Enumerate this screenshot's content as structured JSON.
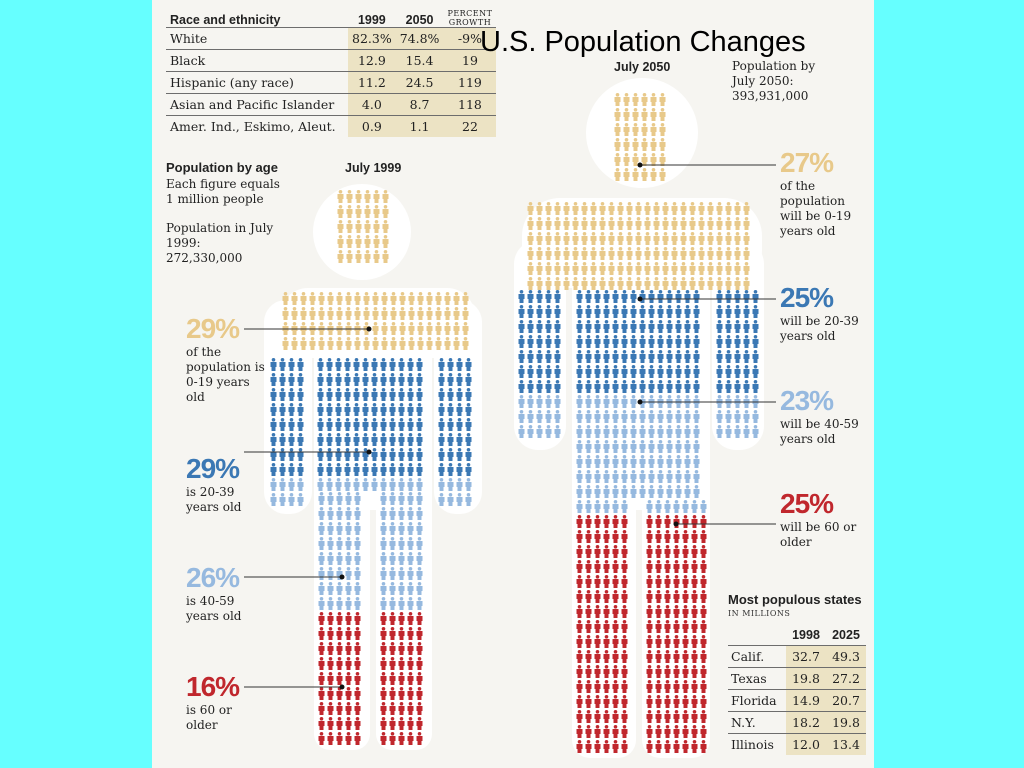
{
  "slide_title": "U.S. Population Changes",
  "race_table": {
    "headers": {
      "label": "Race and ethnicity",
      "y1": "1999",
      "y2": "2050",
      "growth": "PERCENT GROWTH"
    },
    "rows": [
      {
        "label": "White",
        "y1": "82.3%",
        "y2": "74.8%",
        "growth": "-9%"
      },
      {
        "label": "Black",
        "y1": "12.9",
        "y2": "15.4",
        "growth": "19"
      },
      {
        "label": "Hispanic (any race)",
        "y1": "11.2",
        "y2": "24.5",
        "growth": "119"
      },
      {
        "label": "Asian and Pacific Islander",
        "y1": "4.0",
        "y2": "8.7",
        "growth": "118"
      },
      {
        "label": "Amer. Ind., Eskimo, Aleut.",
        "y1": "0.9",
        "y2": "1.1",
        "growth": "22"
      }
    ]
  },
  "age_section": {
    "title": "Population by age",
    "note": "Each figure equals 1 million people",
    "pop_1999_label": "Population in July 1999:",
    "pop_1999_value": "272,330,000",
    "label_1999": "July 1999",
    "label_2050": "July 2050",
    "pop_2050_label": "Population by July 2050:",
    "pop_2050_value": "393,931,000"
  },
  "annotations_1999": [
    {
      "pct": "29%",
      "text": "of the population is 0-19 years old",
      "color": "#e8c98a"
    },
    {
      "pct": "29%",
      "text": "is 20-39 years old",
      "color": "#3b78b4"
    },
    {
      "pct": "26%",
      "text": "is 40-59 years old",
      "color": "#96b9df"
    },
    {
      "pct": "16%",
      "text": "is 60 or older",
      "color": "#c0272d"
    }
  ],
  "annotations_2050": [
    {
      "pct": "27%",
      "text": "of the population will be 0-19 years old",
      "color": "#e8c98a"
    },
    {
      "pct": "25%",
      "text": "will be 20-39 years old",
      "color": "#3b78b4"
    },
    {
      "pct": "23%",
      "text": "will be 40-59 years old",
      "color": "#96b9df"
    },
    {
      "pct": "25%",
      "text": "will be 60 or older",
      "color": "#c0272d"
    }
  ],
  "states_table": {
    "title": "Most populous states",
    "subtitle": "IN MILLIONS",
    "headers": [
      "1998",
      "2025"
    ],
    "rows": [
      {
        "state": "Calif.",
        "v1998": "32.7",
        "v2025": "49.3"
      },
      {
        "state": "Texas",
        "v1998": "19.8",
        "v2025": "27.2"
      },
      {
        "state": "Florida",
        "v1998": "14.9",
        "v2025": "20.7"
      },
      {
        "state": "N.Y.",
        "v1998": "18.2",
        "v2025": "19.8"
      },
      {
        "state": "Illinois",
        "v1998": "12.0",
        "v2025": "13.4"
      }
    ]
  },
  "chart_data": [
    {
      "type": "table",
      "title": "Race and ethnicity",
      "columns": [
        "1999",
        "2050",
        "PERCENT GROWTH"
      ],
      "rows": [
        {
          "category": "White",
          "values": [
            82.3,
            74.8,
            -9
          ]
        },
        {
          "category": "Black",
          "values": [
            12.9,
            15.4,
            19
          ]
        },
        {
          "category": "Hispanic (any race)",
          "values": [
            11.2,
            24.5,
            119
          ]
        },
        {
          "category": "Asian and Pacific Islander",
          "values": [
            4.0,
            8.7,
            118
          ]
        },
        {
          "category": "Amer. Ind., Eskimo, Aleut.",
          "values": [
            0.9,
            1.1,
            22
          ]
        }
      ]
    },
    {
      "type": "bar",
      "title": "Population by age",
      "categories": [
        "0-19",
        "20-39",
        "40-59",
        "60 or older"
      ],
      "series": [
        {
          "name": "July 1999",
          "values": [
            29,
            29,
            26,
            16
          ]
        },
        {
          "name": "July 2050",
          "values": [
            27,
            25,
            23,
            25
          ]
        }
      ],
      "colors": [
        "#e8c98a",
        "#3b78b4",
        "#96b9df",
        "#c0272d"
      ]
    },
    {
      "type": "table",
      "title": "Most populous states",
      "columns": [
        "1998",
        "2025"
      ],
      "rows": [
        {
          "category": "Calif.",
          "values": [
            32.7,
            49.3
          ]
        },
        {
          "category": "Texas",
          "values": [
            19.8,
            27.2
          ]
        },
        {
          "category": "Florida",
          "values": [
            14.9,
            20.7
          ]
        },
        {
          "category": "N.Y.",
          "values": [
            18.2,
            19.8
          ]
        },
        {
          "category": "Illinois",
          "values": [
            12.0,
            13.4
          ]
        }
      ]
    }
  ]
}
